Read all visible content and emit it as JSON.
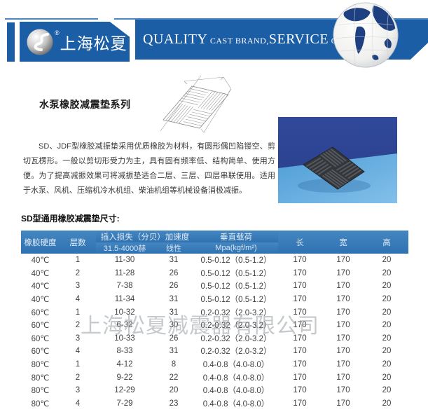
{
  "header": {
    "brand_name": "上海松夏",
    "registered_mark": "®",
    "slogan": {
      "part1": "QUALITY",
      "part2": " CAST BRAND,",
      "part3": "SERVICE",
      "part4": " CREAT VALUE"
    }
  },
  "content": {
    "title": "水泵橡胶减震垫系列",
    "description": "SD、JDF型橡胶减振垫采用优质橡胶为材料，有圆形偶凹陷镂空、剪切瓦楞形。一般以剪切形受力为主，具有固有频率低、结构简单、使用方便。为了提高减振效果可将减振垫适合二层、三层、四层串联使用。适用于水泵、风机、压缩机冷水机组、柴油机组等机械设备消极减振。",
    "section_title": "SD型通用橡胶减震垫尺寸:"
  },
  "watermark": "上海松夏减震器有限公司",
  "table": {
    "header": {
      "col_hardness": "橡胶硬度",
      "col_layers": "层数",
      "col_insertion": "插入损失（分贝）加速度",
      "sub_freq": "31.5-4000赫",
      "sub_linear": "线性",
      "col_load": "垂直载荷",
      "sub_load_unit": "Mpa(kgf/m²)",
      "col_length": "长",
      "col_width": "宽",
      "col_height": "高"
    },
    "rows": [
      [
        "40℃",
        "1",
        "11-30",
        "31",
        "0.5-0.12（0.5-1.2）",
        "170",
        "170",
        "20"
      ],
      [
        "40℃",
        "2",
        "11-28",
        "26",
        "0.5-0.12（0.5-1.2）",
        "170",
        "170",
        "20"
      ],
      [
        "40℃",
        "3",
        "7-38",
        "26",
        "0.5-0.12（0.5-1.2）",
        "170",
        "170",
        "20"
      ],
      [
        "40℃",
        "4",
        "11-34",
        "31",
        "0.5-0.12（0.5-1.2）",
        "170",
        "170",
        "20"
      ],
      [
        "60℃",
        "1",
        "10-32",
        "31",
        "0.2-0.32（2.0-3.2）",
        "170",
        "170",
        "20"
      ],
      [
        "60℃",
        "2",
        "6-32",
        "30",
        "0.2-0.32（2.0-3.2）",
        "170",
        "170",
        "20"
      ],
      [
        "60℃",
        "3",
        "10-33",
        "26",
        "0.2-0.32（2.0-3.2）",
        "170",
        "170",
        "20"
      ],
      [
        "60℃",
        "4",
        "8-33",
        "31",
        "0.2-0.32（2.0-3.2）",
        "170",
        "170",
        "20"
      ],
      [
        "80℃",
        "1",
        "4-12",
        "8",
        "0.4-0.8（4.0-8.0）",
        "170",
        "170",
        "20"
      ],
      [
        "80℃",
        "2",
        "9-22",
        "22",
        "0.4-0.8（4.0-8.0）",
        "170",
        "170",
        "20"
      ],
      [
        "80℃",
        "3",
        "12-29",
        "20",
        "0.4-0.8（4.0-8.0）",
        "170",
        "170",
        "20"
      ],
      [
        "80℃",
        "4",
        "7-29",
        "23",
        "0.4-0.8（4.0-8.0）",
        "170",
        "170",
        "20"
      ]
    ]
  },
  "colors": {
    "brand_blue": "#1b5ea6",
    "top_line_blue": "#4d86c0",
    "table_header_blue": "#3377b5",
    "photo_dark_blue": "#2c4391",
    "photo_light_blue": "#5aa8de",
    "pad_dark": "#33363a",
    "watermark_gray": "#a9aeb3"
  }
}
